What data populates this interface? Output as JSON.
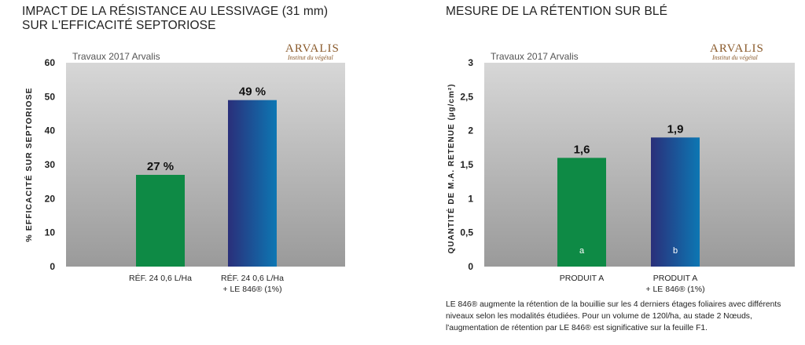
{
  "left": {
    "title_line1": "IMPACT DE LA RÉSISTANCE AU LESSIVAGE (31 mm)",
    "title_line2": "SUR L'EFFICACITÉ SEPTORIOSE",
    "logo": "ARVALIS",
    "logo_sub": "Institut du végétal"
  },
  "right": {
    "title": "MESURE DE LA RÉTENTION SUR BLÉ",
    "logo": "ARVALIS",
    "logo_sub": "Institut du végétal",
    "caption": "LE 846® augmente la rétention de la bouillie sur les 4 derniers étages foliaires avec différents niveaux selon les modalités étudiées. Pour un volume de 120l/ha, au stade 2 Nœuds, l'augmentation de rétention par LE 846® est significative sur la feuille F1."
  },
  "colors": {
    "green": "#0e8a45",
    "blue_dark": "#2a2f7a",
    "blue_light": "#0d77b3"
  },
  "chart_data": [
    {
      "type": "bar",
      "title": "",
      "annotation": "Travaux 2017 Arvalis",
      "ylabel": "% EFFICACITÉ SUR SEPTORIOSE",
      "ylim": [
        0,
        60
      ],
      "yticks": [
        "0",
        "10",
        "20",
        "30",
        "40",
        "50",
        "60"
      ],
      "categories": [
        {
          "line1": "RÉF. 24 0,6 L/Ha",
          "line2": ""
        },
        {
          "line1": "RÉF. 24 0,6 L/Ha",
          "line2": "+ LE 846® (1%)"
        }
      ],
      "values": [
        27,
        49
      ],
      "value_labels": [
        "27 %",
        "49 %"
      ],
      "inner_labels": [
        "",
        ""
      ],
      "grid": false
    },
    {
      "type": "bar",
      "title": "",
      "annotation": "Travaux 2017 Arvalis",
      "ylabel": "QUANTITÉ DE M.A. RETENUE (µg/cm²)",
      "ylim": [
        0,
        3
      ],
      "yticks": [
        "0",
        "0,5",
        "1",
        "1,5",
        "2",
        "2,5",
        "3"
      ],
      "categories": [
        {
          "line1": "PRODUIT A",
          "line2": ""
        },
        {
          "line1": "PRODUIT A",
          "line2": "+ LE 846® (1%)"
        }
      ],
      "values": [
        1.6,
        1.9
      ],
      "value_labels": [
        "1,6",
        "1,9"
      ],
      "inner_labels": [
        "a",
        "b"
      ],
      "grid": false
    }
  ]
}
